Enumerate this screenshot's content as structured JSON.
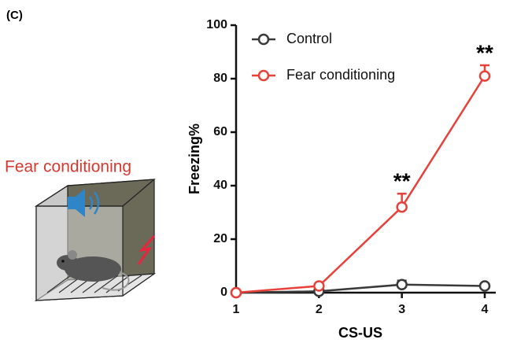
{
  "panel_label": "(C)",
  "illustration_label": "Fear conditioning",
  "chart_data": {
    "type": "line",
    "x": [
      1,
      2,
      3,
      4
    ],
    "xlim": [
      1,
      4
    ],
    "xticks": [
      1,
      2,
      3,
      4
    ],
    "ylim": [
      0,
      100
    ],
    "yticks": [
      0,
      20,
      40,
      60,
      80,
      100
    ],
    "x_label": "CS-US",
    "y_label": "Freezing%",
    "legend": "upper left",
    "series": [
      {
        "name": "Control",
        "color": "#3a3a3a",
        "values": [
          0,
          0.5,
          3,
          2.5
        ],
        "errors": [
          0,
          0,
          1.5,
          0
        ]
      },
      {
        "name": "Fear conditioning",
        "color": "#e8413a",
        "values": [
          0,
          2.5,
          32,
          81
        ],
        "errors": [
          0,
          0.5,
          5,
          4
        ]
      }
    ],
    "annotations": [
      {
        "text": "**",
        "x": 3
      },
      {
        "text": "**",
        "x": 4
      }
    ]
  }
}
